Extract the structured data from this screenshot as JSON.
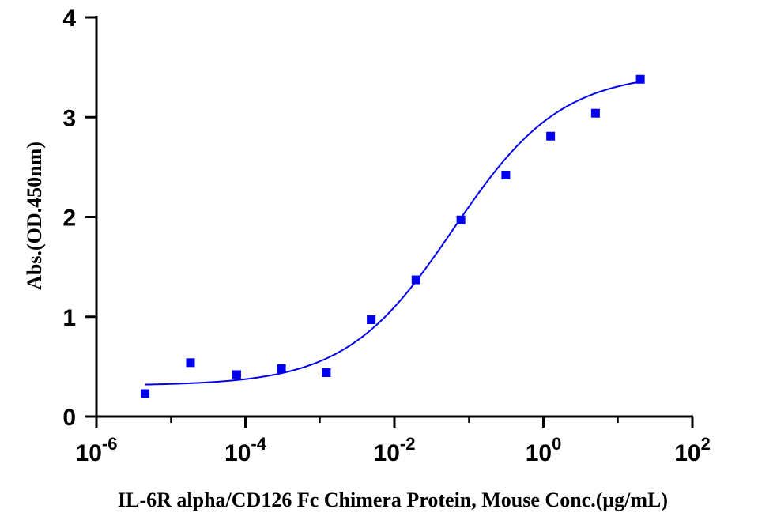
{
  "chart_data": {
    "type": "scatter",
    "title": "",
    "xlabel": "IL-6R alpha/CD126 Fc Chimera Protein, Mouse Conc.(μg/mL)",
    "ylabel": "Abs.(OD.450nm)",
    "x_scale": "log",
    "xlim": [
      1e-06,
      100
    ],
    "ylim": [
      0,
      4
    ],
    "x_ticks": [
      {
        "base": "10",
        "exp": "-6",
        "value": 1e-06
      },
      {
        "base": "10",
        "exp": "-4",
        "value": 0.0001
      },
      {
        "base": "10",
        "exp": "-2",
        "value": 0.01
      },
      {
        "base": "10",
        "exp": "0",
        "value": 1
      },
      {
        "base": "10",
        "exp": "2",
        "value": 100
      }
    ],
    "y_ticks": [
      "0",
      "1",
      "2",
      "3",
      "4"
    ],
    "grid": false,
    "legend": "none",
    "colors": {
      "series": "#0000ee",
      "axis": "#000000"
    },
    "series": [
      {
        "marker": "square",
        "x": [
          4.5e-06,
          1.83e-05,
          7.63e-05,
          0.000305,
          0.00122,
          0.00488,
          0.0195,
          0.0781,
          0.3125,
          1.25,
          5,
          20
        ],
        "y": [
          0.23,
          0.54,
          0.42,
          0.48,
          0.44,
          0.97,
          1.37,
          1.97,
          2.42,
          2.81,
          3.04,
          3.38
        ]
      }
    ],
    "fit_curve": {
      "model": "4PL",
      "bottom": 0.31,
      "top": 3.45,
      "ec50": 0.062,
      "hill": 0.6,
      "x_range": [
        4.5e-06,
        20
      ]
    }
  }
}
